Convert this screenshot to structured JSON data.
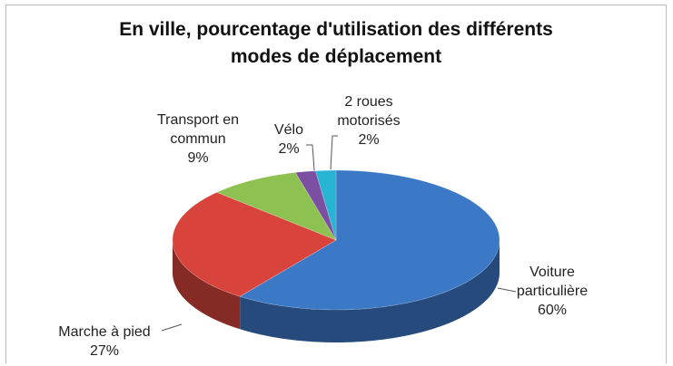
{
  "chart_data": {
    "type": "pie3d",
    "title": "En ville, pourcentage d'utilisation des différents modes de déplacement",
    "categories": [
      "Voiture particulière",
      "Marche à pied",
      "Transport en commun",
      "Vélo",
      "2 roues motorisés"
    ],
    "values": [
      60,
      27,
      9,
      2,
      2
    ],
    "value_labels": [
      "60%",
      "27%",
      "9%",
      "2%",
      "2%"
    ],
    "colors": [
      "#3b78c6",
      "#d8433c",
      "#8dc151",
      "#7b4fa2",
      "#27b5d3"
    ]
  }
}
